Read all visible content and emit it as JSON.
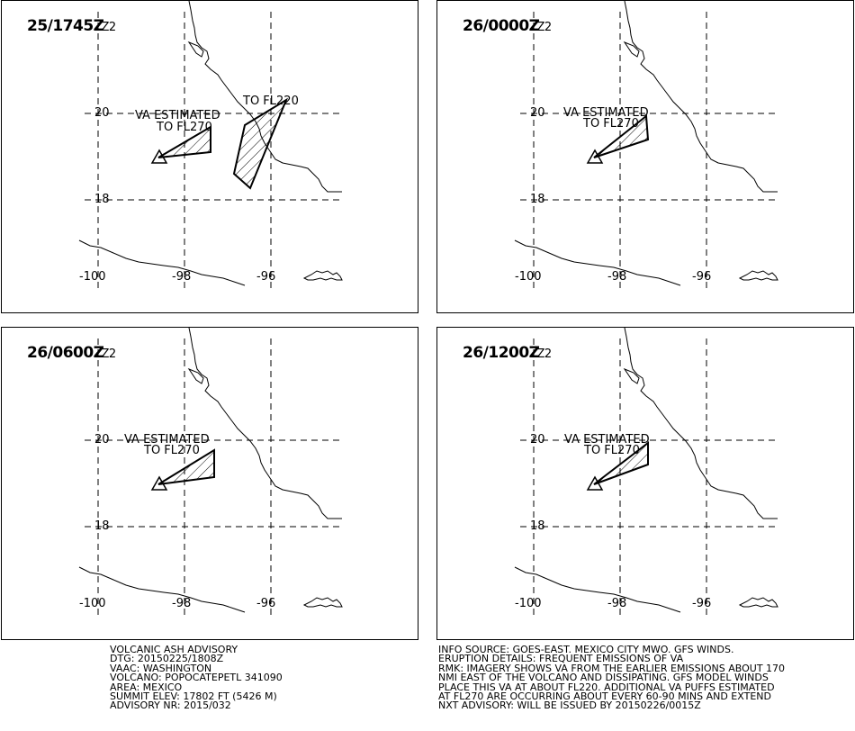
{
  "panels": [
    {
      "id": "tl",
      "valid_time": "25/1745Z",
      "suffix": "Z2",
      "labels": {
        "va": "VA ESTIMATED",
        "fl_main": "TO FL270",
        "fl_second": "TO FL220"
      }
    },
    {
      "id": "tr",
      "valid_time": "26/0000Z",
      "suffix": "Z2",
      "labels": {
        "va": "VA ESTIMATED",
        "fl_main": "TO FL270"
      }
    },
    {
      "id": "bl",
      "valid_time": "26/0600Z",
      "suffix": "Z2",
      "labels": {
        "va": "VA ESTIMATED",
        "fl_main": "TO FL270"
      }
    },
    {
      "id": "br",
      "valid_time": "26/1200Z",
      "suffix": "Z2",
      "labels": {
        "va": "VA ESTIMATED",
        "fl_main": "TO FL270"
      }
    }
  ],
  "grid_labels": {
    "lat": [
      "20",
      "18"
    ],
    "lon": [
      "-100",
      "-98",
      "-96"
    ]
  },
  "advisory_left": [
    "VOLCANIC ASH ADVISORY",
    "DTG: 20150225/1808Z",
    "VAAC: WASHINGTON",
    "VOLCANO: POPOCATEPETL 341090",
    "AREA: MEXICO",
    "SUMMIT ELEV: 17802 FT (5426 M)",
    "ADVISORY NR: 2015/032"
  ],
  "advisory_right": [
    "INFO SOURCE: GOES-EAST. MEXICO CITY MWO. GFS WINDS.",
    "ERUPTION DETAILS: FREQUENT EMISSIONS OF VA",
    "RMK: IMAGERY SHOWS VA FROM THE EARLIER EMISSIONS ABOUT 170",
    "NMI EAST OF THE VOLCANO AND DISSIPATING. GFS MODEL WINDS",
    "PLACE THIS VA AT ABOUT FL220. ADDITIONAL VA PUFFS ESTIMATED",
    "AT FL270 ARE OCCURRING ABOUT EVERY 60-90 MINS AND EXTEND",
    "NXT ADVISORY: WILL BE ISSUED BY 20150226/0015Z"
  ]
}
